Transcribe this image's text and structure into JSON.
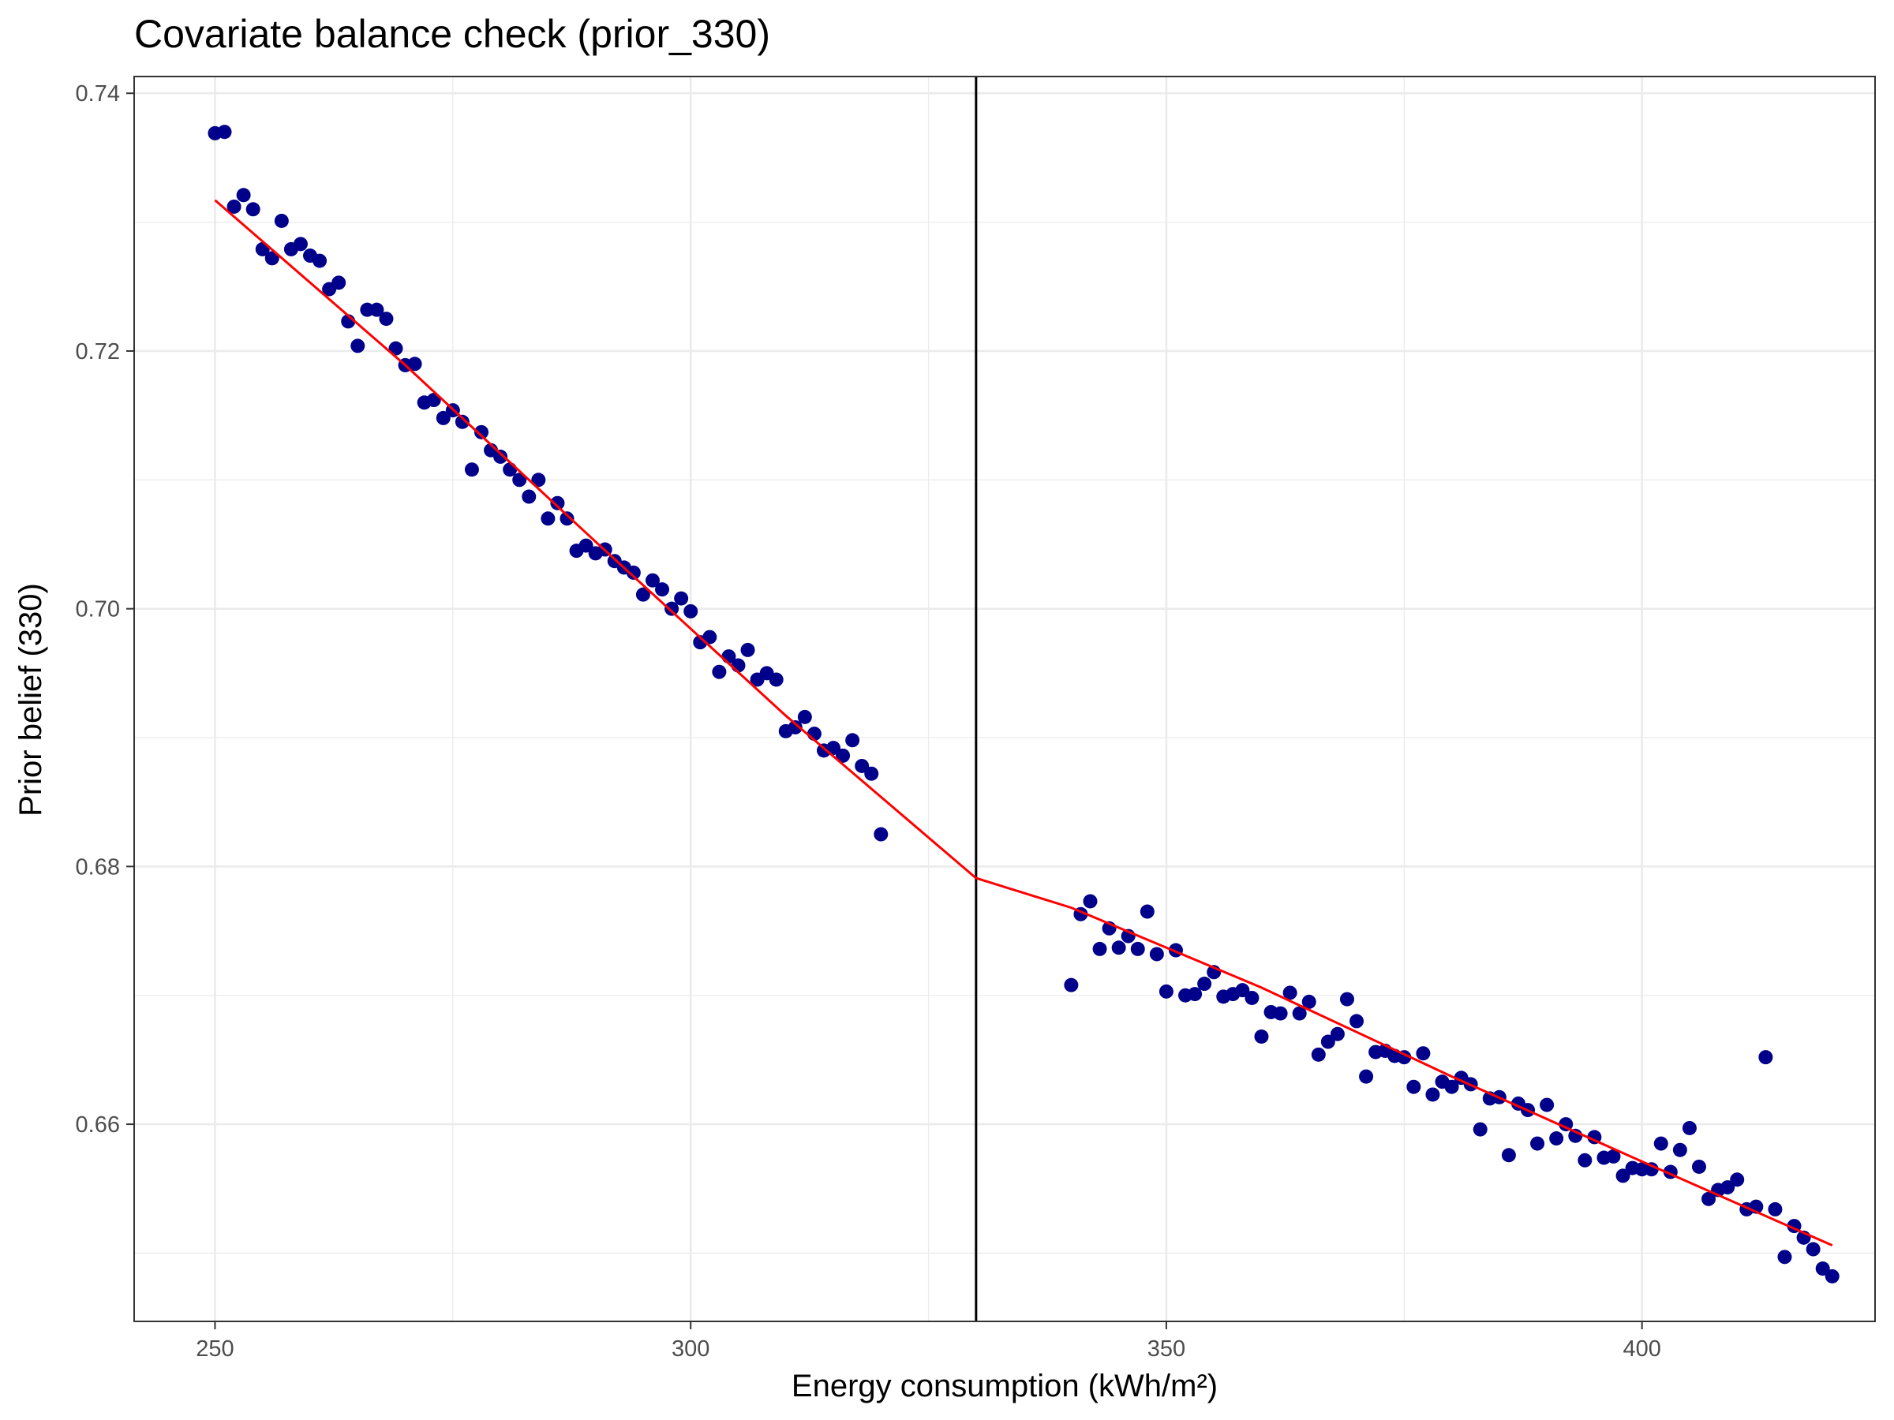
{
  "chart_data": {
    "type": "scatter",
    "title": "Covariate balance check (prior_330)",
    "xlabel": "Energy consumption (kWh/m²)",
    "ylabel": "Prior belief (330)",
    "xlim": [
      241.5,
      424.5
    ],
    "ylim": [
      0.6447,
      0.7413
    ],
    "x_ticks": [
      250,
      300,
      350,
      400
    ],
    "x_tick_labels": [
      "250",
      "300",
      "350",
      "400"
    ],
    "y_ticks": [
      0.66,
      0.68,
      0.7,
      0.72,
      0.74
    ],
    "y_tick_labels": [
      "0.66",
      "0.68",
      "0.70",
      "0.72",
      "0.74"
    ],
    "grid": true,
    "cutoff": 330,
    "colors": {
      "points": "#00008B",
      "fit": "#FF0000",
      "cutoff_line": "#000000",
      "grid": "#EBEBEB",
      "panel_border": "#333333"
    },
    "fit_lines": [
      {
        "x": [
          250,
          270,
          290,
          310,
          330
        ],
        "y": [
          0.7317,
          0.7189,
          0.7052,
          0.6917,
          0.6791
        ]
      },
      {
        "x": [
          330,
          340,
          360,
          380,
          400,
          420
        ],
        "y": [
          0.6791,
          0.6768,
          0.6706,
          0.6637,
          0.6571,
          0.6506
        ]
      }
    ],
    "points": [
      [
        250,
        0.7369
      ],
      [
        251,
        0.737
      ],
      [
        252,
        0.7312
      ],
      [
        253,
        0.7321
      ],
      [
        254,
        0.731
      ],
      [
        255,
        0.7279
      ],
      [
        256,
        0.7272
      ],
      [
        257,
        0.7301
      ],
      [
        258,
        0.7279
      ],
      [
        259,
        0.7283
      ],
      [
        260,
        0.7274
      ],
      [
        261,
        0.727
      ],
      [
        262,
        0.7248
      ],
      [
        263,
        0.7253
      ],
      [
        264,
        0.7223
      ],
      [
        265,
        0.7204
      ],
      [
        266,
        0.7232
      ],
      [
        267,
        0.7232
      ],
      [
        268,
        0.7225
      ],
      [
        269,
        0.7202
      ],
      [
        270,
        0.7189
      ],
      [
        271,
        0.719
      ],
      [
        272,
        0.716
      ],
      [
        273,
        0.7162
      ],
      [
        274,
        0.7148
      ],
      [
        275,
        0.7154
      ],
      [
        276,
        0.7145
      ],
      [
        277,
        0.7108
      ],
      [
        278,
        0.7137
      ],
      [
        279,
        0.7123
      ],
      [
        280,
        0.7118
      ],
      [
        281,
        0.7108
      ],
      [
        282,
        0.71
      ],
      [
        283,
        0.7087
      ],
      [
        284,
        0.71
      ],
      [
        285,
        0.707
      ],
      [
        286,
        0.7082
      ],
      [
        287,
        0.707
      ],
      [
        288,
        0.7045
      ],
      [
        289,
        0.7049
      ],
      [
        290,
        0.7043
      ],
      [
        291,
        0.7046
      ],
      [
        292,
        0.7037
      ],
      [
        293,
        0.7032
      ],
      [
        294,
        0.7028
      ],
      [
        295,
        0.7011
      ],
      [
        296,
        0.7022
      ],
      [
        297,
        0.7015
      ],
      [
        298,
        0.7
      ],
      [
        299,
        0.7008
      ],
      [
        300,
        0.6998
      ],
      [
        301,
        0.6974
      ],
      [
        302,
        0.6978
      ],
      [
        303,
        0.6951
      ],
      [
        304,
        0.6963
      ],
      [
        305,
        0.6956
      ],
      [
        306,
        0.6968
      ],
      [
        307,
        0.6945
      ],
      [
        308,
        0.695
      ],
      [
        309,
        0.6945
      ],
      [
        310,
        0.6905
      ],
      [
        311,
        0.6908
      ],
      [
        312,
        0.6916
      ],
      [
        313,
        0.6903
      ],
      [
        314,
        0.689
      ],
      [
        315,
        0.6892
      ],
      [
        316,
        0.6886
      ],
      [
        317,
        0.6898
      ],
      [
        318,
        0.6878
      ],
      [
        319,
        0.6872
      ],
      [
        320,
        0.6825
      ],
      [
        340,
        0.6708
      ],
      [
        341,
        0.6763
      ],
      [
        342,
        0.6773
      ],
      [
        343,
        0.6736
      ],
      [
        344,
        0.6752
      ],
      [
        345,
        0.6737
      ],
      [
        346,
        0.6746
      ],
      [
        347,
        0.6736
      ],
      [
        348,
        0.6765
      ],
      [
        349,
        0.6732
      ],
      [
        350,
        0.6703
      ],
      [
        351,
        0.6735
      ],
      [
        352,
        0.67
      ],
      [
        353,
        0.6701
      ],
      [
        354,
        0.6709
      ],
      [
        355,
        0.6718
      ],
      [
        356,
        0.6699
      ],
      [
        357,
        0.6701
      ],
      [
        358,
        0.6704
      ],
      [
        359,
        0.6698
      ],
      [
        360,
        0.6668
      ],
      [
        361,
        0.6687
      ],
      [
        362,
        0.6686
      ],
      [
        363,
        0.6702
      ],
      [
        364,
        0.6686
      ],
      [
        365,
        0.6695
      ],
      [
        366,
        0.6654
      ],
      [
        367,
        0.6664
      ],
      [
        368,
        0.667
      ],
      [
        369,
        0.6697
      ],
      [
        370,
        0.668
      ],
      [
        371,
        0.6637
      ],
      [
        372,
        0.6656
      ],
      [
        373,
        0.6657
      ],
      [
        374,
        0.6653
      ],
      [
        375,
        0.6652
      ],
      [
        376,
        0.6629
      ],
      [
        377,
        0.6655
      ],
      [
        378,
        0.6623
      ],
      [
        379,
        0.6633
      ],
      [
        380,
        0.6629
      ],
      [
        381,
        0.6636
      ],
      [
        382,
        0.6631
      ],
      [
        383,
        0.6596
      ],
      [
        384,
        0.662
      ],
      [
        385,
        0.6621
      ],
      [
        386,
        0.6576
      ],
      [
        387,
        0.6616
      ],
      [
        388,
        0.6611
      ],
      [
        389,
        0.6585
      ],
      [
        390,
        0.6615
      ],
      [
        391,
        0.6589
      ],
      [
        392,
        0.66
      ],
      [
        393,
        0.6591
      ],
      [
        394,
        0.6572
      ],
      [
        395,
        0.659
      ],
      [
        396,
        0.6574
      ],
      [
        397,
        0.6575
      ],
      [
        398,
        0.656
      ],
      [
        399,
        0.6566
      ],
      [
        400,
        0.6565
      ],
      [
        401,
        0.6565
      ],
      [
        402,
        0.6585
      ],
      [
        403,
        0.6563
      ],
      [
        404,
        0.658
      ],
      [
        405,
        0.6597
      ],
      [
        406,
        0.6567
      ],
      [
        407,
        0.6542
      ],
      [
        408,
        0.6549
      ],
      [
        409,
        0.6551
      ],
      [
        410,
        0.6557
      ],
      [
        411,
        0.6534
      ],
      [
        412,
        0.6536
      ],
      [
        413,
        0.6652
      ],
      [
        414,
        0.6534
      ],
      [
        415,
        0.6497
      ],
      [
        416,
        0.6521
      ],
      [
        417,
        0.6512
      ],
      [
        418,
        0.6503
      ],
      [
        419,
        0.6488
      ],
      [
        420,
        0.6482
      ]
    ]
  }
}
